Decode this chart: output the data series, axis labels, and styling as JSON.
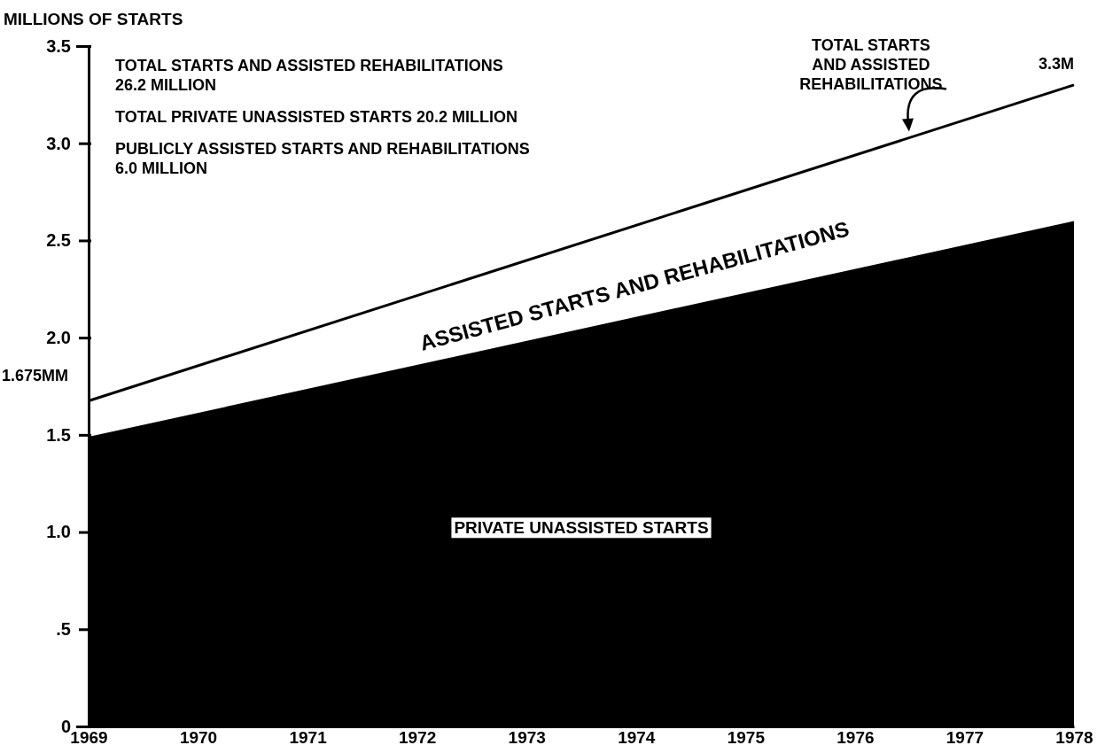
{
  "chart_data": {
    "type": "area",
    "ylabel": "MILLIONS OF STARTS",
    "x": [
      1969,
      1978
    ],
    "xlim": [
      1969,
      1978
    ],
    "xticks": [
      1969,
      1970,
      1971,
      1972,
      1973,
      1974,
      1975,
      1976,
      1977,
      1978
    ],
    "ylim": [
      0,
      3.5
    ],
    "yticks": [
      0,
      {
        "value": 0.5,
        "label": ".5"
      },
      {
        "value": 1,
        "label": "1.0"
      },
      1.5,
      {
        "value": 2,
        "label": "2.0"
      },
      2.5,
      {
        "value": 3,
        "label": "3.0"
      },
      3.5
    ],
    "grid": false,
    "series": [
      {
        "name": "PRIVATE UNASSISTED STARTS",
        "color": "#000000",
        "values": [
          1.49,
          2.6
        ]
      },
      {
        "name": "TOTAL STARTS AND ASSISTED REHABILITATIONS",
        "type": "line",
        "color": "#000000",
        "values": [
          1.675,
          3.3
        ],
        "value_labels": [
          "1.675MM",
          "3.3M"
        ]
      }
    ],
    "annotations": [
      "TOTAL STARTS AND ASSISTED REHABILITATIONS 26.2 MILLION",
      "TOTAL PRIVATE UNASSISTED STARTS 20.2 MILLION",
      "PUBLICLY ASSISTED STARTS AND REHABILITATIONS 6.0 MILLION",
      "ASSISTED STARTS AND REHABILITATIONS"
    ]
  }
}
